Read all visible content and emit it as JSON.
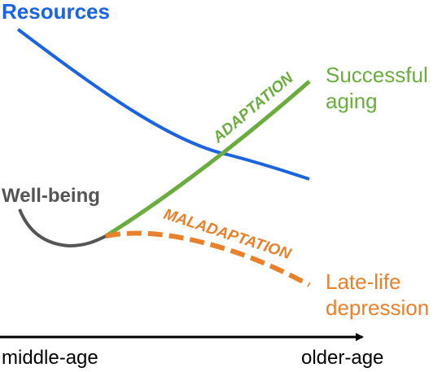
{
  "labels": {
    "resources": "Resources",
    "well_being": "Well-being",
    "adaptation": "ADAPTATION",
    "maladaptation": "MALADAPTATION",
    "successful_1": "Successful",
    "successful_2": "aging",
    "depression_1": "Late-life",
    "depression_2": "depression",
    "x_start": "middle-age",
    "x_end": "older-age"
  },
  "colors": {
    "resources": "#1a64e0",
    "well_being": "#555555",
    "adaptation": "#6aad3d",
    "maladaptation": "#e9802b",
    "axis": "#000000"
  }
}
